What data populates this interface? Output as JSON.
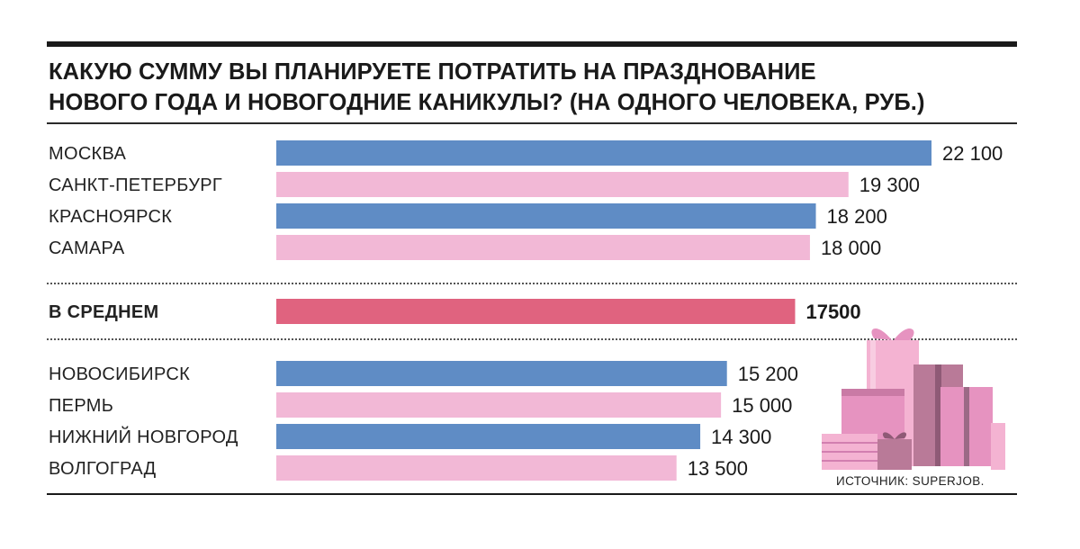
{
  "title_lines": [
    "КАКУЮ СУММУ ВЫ ПЛАНИРУЕТЕ ПОТРАТИТЬ НА ПРАЗДНОВАНИЕ",
    "НОВОГО ГОДА И НОВОГОДНИЕ КАНИКУЛЫ? (НА ОДНОГО ЧЕЛОВЕКА, РУБ.)"
  ],
  "source": "ИСТОЧНИК: SUPERJOB.",
  "colors": {
    "blue": "#5f8cc5",
    "pink": "#f2b8d6",
    "average": "#e0637f",
    "gift_light": "#f4b3d2",
    "gift_mid": "#e693c0",
    "gift_dark": "#b97a98"
  },
  "chart_data": {
    "type": "bar",
    "orientation": "horizontal",
    "xlim": [
      0,
      22100
    ],
    "bars": [
      {
        "label": "МОСКВА",
        "value": 22100,
        "value_label": "22 100",
        "color": "blue",
        "group": "top"
      },
      {
        "label": "САНКТ-ПЕТЕРБУРГ",
        "value": 19300,
        "value_label": "19 300",
        "color": "pink",
        "group": "top"
      },
      {
        "label": "КРАСНОЯРСК",
        "value": 18200,
        "value_label": "18 200",
        "color": "blue",
        "group": "top"
      },
      {
        "label": "САМАРА",
        "value": 18000,
        "value_label": "18 000",
        "color": "pink",
        "group": "top"
      },
      {
        "label": "В СРЕДНЕМ",
        "value": 17500,
        "value_label": "17500",
        "color": "average",
        "group": "average"
      },
      {
        "label": "НОВОСИБИРСК",
        "value": 15200,
        "value_label": "15 200",
        "color": "blue",
        "group": "bottom"
      },
      {
        "label": "ПЕРМЬ",
        "value": 15000,
        "value_label": "15 000",
        "color": "pink",
        "group": "bottom"
      },
      {
        "label": "НИЖНИЙ НОВГОРОД",
        "value": 14300,
        "value_label": "14 300",
        "color": "blue",
        "group": "bottom"
      },
      {
        "label": "ВОЛГОГРАД",
        "value": 13500,
        "value_label": "13 500",
        "color": "pink",
        "group": "bottom"
      }
    ]
  }
}
